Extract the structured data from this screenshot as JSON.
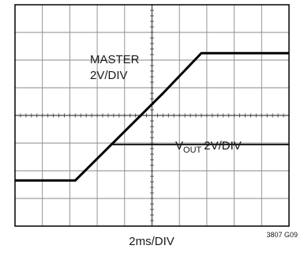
{
  "chart_data": {
    "type": "line",
    "title": "",
    "xlabel": "2ms/DIV",
    "ylabel": "",
    "figure_id": "3807 G09",
    "x_divisions": 10,
    "y_divisions": 8,
    "xlim": [
      0,
      10
    ],
    "ylim": [
      0,
      8
    ],
    "grid": true,
    "series": [
      {
        "name": "MASTER",
        "scale": "2V/DIV",
        "x": [
          0,
          2.2,
          5.4,
          6.8,
          10
        ],
        "y": [
          1.65,
          1.65,
          4.8,
          6.25,
          6.25
        ]
      },
      {
        "name": "VOUT",
        "scale": "2V/DIV",
        "x": [
          0,
          2.2,
          3.5,
          10
        ],
        "y": [
          1.65,
          1.65,
          2.95,
          2.95
        ]
      }
    ],
    "annotations": {
      "master_name": "MASTER",
      "master_scale": "2V/DIV",
      "vout_main": "V",
      "vout_sub": "OUT",
      "vout_scale": "2V/DIV"
    }
  }
}
